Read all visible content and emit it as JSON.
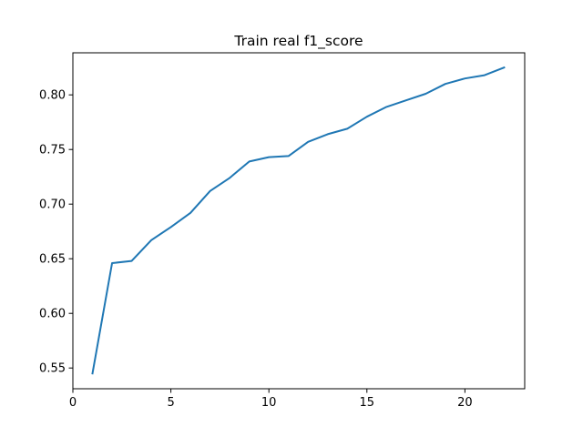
{
  "chart_data": {
    "type": "line",
    "title": "Train real f1_score",
    "xlabel": "",
    "ylabel": "",
    "xlim": [
      0,
      23.05
    ],
    "ylim": [
      0.531,
      0.8385
    ],
    "xticks": [
      0,
      5,
      10,
      15,
      20
    ],
    "xtick_labels": [
      "0",
      "5",
      "10",
      "15",
      "20"
    ],
    "yticks": [
      0.55,
      0.6,
      0.65,
      0.7,
      0.75,
      0.8
    ],
    "ytick_labels": [
      "0.55",
      "0.60",
      "0.65",
      "0.70",
      "0.75",
      "0.80"
    ],
    "grid": false,
    "legend": "none",
    "series": [
      {
        "color": "#1f77b4",
        "x": [
          1,
          2,
          3,
          4,
          5,
          6,
          7,
          8,
          9,
          10,
          11,
          12,
          13,
          14,
          15,
          16,
          17,
          18,
          19,
          20,
          21,
          22
        ],
        "y": [
          0.545,
          0.646,
          0.648,
          0.667,
          0.679,
          0.692,
          0.712,
          0.724,
          0.739,
          0.743,
          0.744,
          0.757,
          0.764,
          0.769,
          0.78,
          0.789,
          0.795,
          0.801,
          0.81,
          0.815,
          0.818,
          0.825
        ]
      }
    ]
  }
}
